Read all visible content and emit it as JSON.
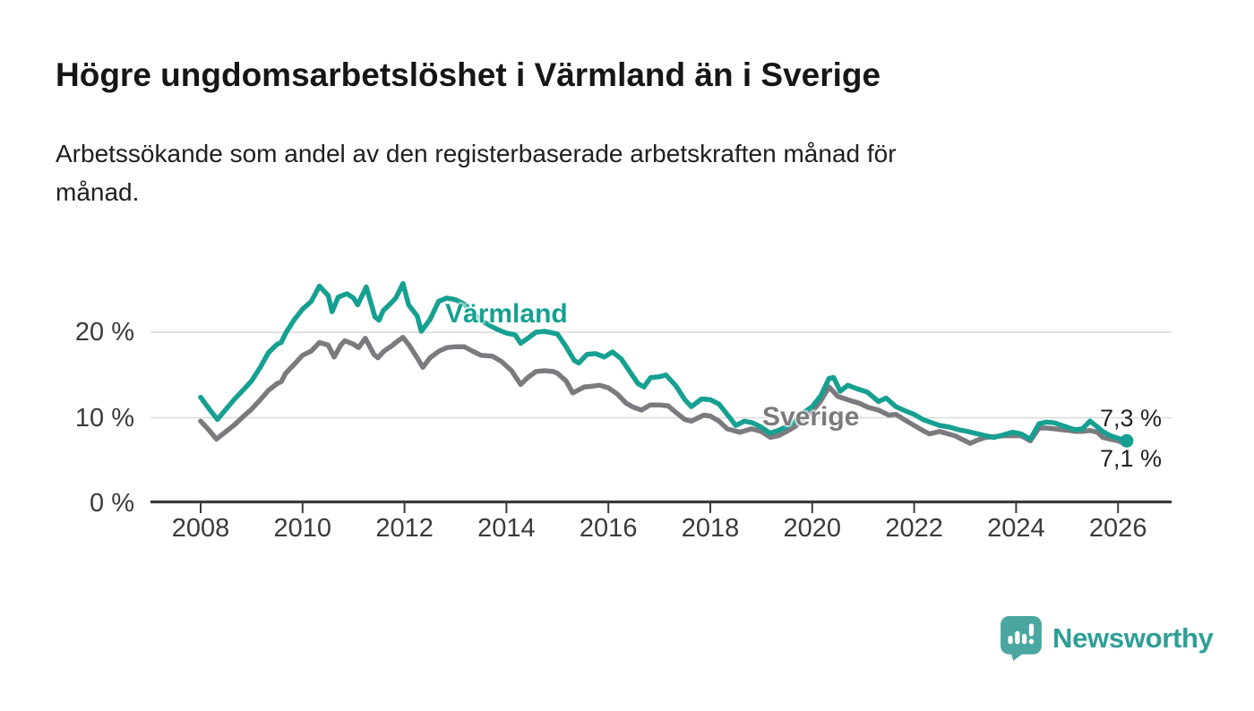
{
  "header": {
    "title": "Högre ungdomsarbetslöshet i Värmland än i Sverige",
    "subtitle_lines": [
      "Arbetssökande som andel av den registerbaserade arbetskraften månad för",
      "månad."
    ]
  },
  "footer": {
    "brand": "Newsworthy",
    "brand_color": "#2f9e96",
    "logo_bubble_color": "#4aa6a0",
    "logo_bars_color": "#ffffff"
  },
  "chart_data": {
    "type": "line",
    "title": "Högre ungdomsarbetslöshet i Värmland än i Sverige",
    "subtitle": "Arbetssökande som andel av den registerbaserade arbetskraften månad för månad.",
    "unit": "%",
    "grid": "horizontal",
    "legend_position": "inline-labels",
    "x_range": [
      2008,
      2027.05
    ],
    "y_range": [
      0,
      27
    ],
    "x_ticks": [
      2008,
      2010,
      2012,
      2014,
      2016,
      2018,
      2020,
      2022,
      2024,
      2026
    ],
    "y_ticks": [
      {
        "value": 0,
        "label": "0 %"
      },
      {
        "value": 10,
        "label": "10 %"
      },
      {
        "value": 20,
        "label": "20 %"
      }
    ],
    "axis_color": "#3b3b3b",
    "gridline_color": "#d9d9d9",
    "series": [
      {
        "name": "Värmland",
        "color": "#16a091",
        "end_label": "7,3 %",
        "end_value": 7.3,
        "points": [
          [
            2008.0,
            12.4
          ],
          [
            2008.17,
            11.0
          ],
          [
            2008.33,
            9.8
          ],
          [
            2008.5,
            11.0
          ],
          [
            2008.67,
            12.2
          ],
          [
            2008.83,
            13.2
          ],
          [
            2009.0,
            14.3
          ],
          [
            2009.17,
            15.9
          ],
          [
            2009.33,
            17.6
          ],
          [
            2009.5,
            18.6
          ],
          [
            2009.58,
            18.8
          ],
          [
            2009.67,
            19.9
          ],
          [
            2009.83,
            21.4
          ],
          [
            2010.0,
            22.7
          ],
          [
            2010.17,
            23.6
          ],
          [
            2010.33,
            25.4
          ],
          [
            2010.5,
            24.3
          ],
          [
            2010.58,
            22.4
          ],
          [
            2010.7,
            24.1
          ],
          [
            2010.87,
            24.5
          ],
          [
            2011.0,
            24.0
          ],
          [
            2011.08,
            23.2
          ],
          [
            2011.25,
            25.3
          ],
          [
            2011.42,
            21.8
          ],
          [
            2011.5,
            21.4
          ],
          [
            2011.58,
            22.5
          ],
          [
            2011.75,
            23.5
          ],
          [
            2011.83,
            24.0
          ],
          [
            2011.97,
            25.7
          ],
          [
            2012.08,
            23.2
          ],
          [
            2012.25,
            21.9
          ],
          [
            2012.33,
            20.1
          ],
          [
            2012.5,
            21.5
          ],
          [
            2012.67,
            23.6
          ],
          [
            2012.83,
            24.0
          ],
          [
            2013.0,
            23.8
          ],
          [
            2013.17,
            23.3
          ],
          [
            2013.33,
            22.3
          ],
          [
            2013.5,
            21.4
          ],
          [
            2013.67,
            20.8
          ],
          [
            2013.83,
            20.3
          ],
          [
            2014.0,
            19.9
          ],
          [
            2014.17,
            19.7
          ],
          [
            2014.28,
            18.7
          ],
          [
            2014.42,
            19.3
          ],
          [
            2014.58,
            20.0
          ],
          [
            2014.75,
            20.1
          ],
          [
            2014.92,
            19.9
          ],
          [
            2015.0,
            19.8
          ],
          [
            2015.17,
            18.3
          ],
          [
            2015.33,
            16.7
          ],
          [
            2015.42,
            16.4
          ],
          [
            2015.58,
            17.4
          ],
          [
            2015.75,
            17.5
          ],
          [
            2015.92,
            17.1
          ],
          [
            2016.08,
            17.7
          ],
          [
            2016.25,
            16.9
          ],
          [
            2016.42,
            15.4
          ],
          [
            2016.58,
            14.0
          ],
          [
            2016.7,
            13.6
          ],
          [
            2016.83,
            14.7
          ],
          [
            2017.0,
            14.8
          ],
          [
            2017.13,
            15.0
          ],
          [
            2017.33,
            13.7
          ],
          [
            2017.5,
            12.1
          ],
          [
            2017.63,
            11.3
          ],
          [
            2017.83,
            12.2
          ],
          [
            2018.0,
            12.1
          ],
          [
            2018.17,
            11.6
          ],
          [
            2018.33,
            10.4
          ],
          [
            2018.5,
            9.1
          ],
          [
            2018.67,
            9.6
          ],
          [
            2018.83,
            9.4
          ],
          [
            2019.0,
            8.9
          ],
          [
            2019.17,
            8.2
          ],
          [
            2019.33,
            8.5
          ],
          [
            2019.5,
            9.0
          ],
          [
            2019.67,
            9.6
          ],
          [
            2019.83,
            10.6
          ],
          [
            2020.0,
            11.3
          ],
          [
            2020.17,
            12.6
          ],
          [
            2020.33,
            14.6
          ],
          [
            2020.42,
            14.7
          ],
          [
            2020.55,
            13.1
          ],
          [
            2020.7,
            13.8
          ],
          [
            2020.87,
            13.4
          ],
          [
            2021.08,
            13.0
          ],
          [
            2021.3,
            11.9
          ],
          [
            2021.45,
            12.3
          ],
          [
            2021.64,
            11.3
          ],
          [
            2021.83,
            10.8
          ],
          [
            2022.0,
            10.4
          ],
          [
            2022.17,
            9.8
          ],
          [
            2022.35,
            9.4
          ],
          [
            2022.5,
            9.1
          ],
          [
            2022.7,
            8.9
          ],
          [
            2022.87,
            8.6
          ],
          [
            2023.05,
            8.4
          ],
          [
            2023.25,
            8.1
          ],
          [
            2023.4,
            7.9
          ],
          [
            2023.57,
            7.7
          ],
          [
            2023.75,
            8.0
          ],
          [
            2023.93,
            8.3
          ],
          [
            2024.1,
            8.1
          ],
          [
            2024.28,
            7.5
          ],
          [
            2024.45,
            9.3
          ],
          [
            2024.6,
            9.5
          ],
          [
            2024.75,
            9.4
          ],
          [
            2024.9,
            9.1
          ],
          [
            2025.05,
            8.8
          ],
          [
            2025.16,
            8.6
          ],
          [
            2025.3,
            8.7
          ],
          [
            2025.45,
            9.6
          ],
          [
            2025.6,
            8.9
          ],
          [
            2025.7,
            8.4
          ],
          [
            2025.85,
            7.9
          ],
          [
            2026.0,
            7.6
          ],
          [
            2026.17,
            7.3
          ]
        ]
      },
      {
        "name": "Sverige",
        "color": "#7b7b7f",
        "end_label": "7,1 %",
        "end_value": 7.1,
        "points": [
          [
            2008.0,
            9.6
          ],
          [
            2008.17,
            8.5
          ],
          [
            2008.31,
            7.5
          ],
          [
            2008.5,
            8.4
          ],
          [
            2008.67,
            9.2
          ],
          [
            2008.83,
            10.1
          ],
          [
            2009.0,
            11.0
          ],
          [
            2009.17,
            12.1
          ],
          [
            2009.33,
            13.2
          ],
          [
            2009.5,
            14.0
          ],
          [
            2009.58,
            14.2
          ],
          [
            2009.67,
            15.2
          ],
          [
            2009.83,
            16.2
          ],
          [
            2010.0,
            17.3
          ],
          [
            2010.17,
            17.8
          ],
          [
            2010.33,
            18.8
          ],
          [
            2010.5,
            18.5
          ],
          [
            2010.62,
            17.1
          ],
          [
            2010.75,
            18.5
          ],
          [
            2010.83,
            19.0
          ],
          [
            2011.0,
            18.6
          ],
          [
            2011.1,
            18.2
          ],
          [
            2011.23,
            19.3
          ],
          [
            2011.4,
            17.4
          ],
          [
            2011.48,
            17.0
          ],
          [
            2011.6,
            17.8
          ],
          [
            2011.75,
            18.4
          ],
          [
            2011.83,
            18.8
          ],
          [
            2011.97,
            19.4
          ],
          [
            2012.1,
            18.4
          ],
          [
            2012.25,
            17.0
          ],
          [
            2012.36,
            15.9
          ],
          [
            2012.5,
            17.0
          ],
          [
            2012.68,
            17.8
          ],
          [
            2012.83,
            18.2
          ],
          [
            2013.0,
            18.3
          ],
          [
            2013.17,
            18.3
          ],
          [
            2013.33,
            17.8
          ],
          [
            2013.5,
            17.3
          ],
          [
            2013.72,
            17.2
          ],
          [
            2013.9,
            16.6
          ],
          [
            2014.1,
            15.5
          ],
          [
            2014.28,
            13.9
          ],
          [
            2014.42,
            14.7
          ],
          [
            2014.58,
            15.4
          ],
          [
            2014.75,
            15.5
          ],
          [
            2014.92,
            15.4
          ],
          [
            2015.0,
            15.2
          ],
          [
            2015.17,
            14.3
          ],
          [
            2015.3,
            12.9
          ],
          [
            2015.53,
            13.6
          ],
          [
            2015.7,
            13.7
          ],
          [
            2015.83,
            13.8
          ],
          [
            2016.0,
            13.5
          ],
          [
            2016.17,
            12.8
          ],
          [
            2016.35,
            11.7
          ],
          [
            2016.5,
            11.2
          ],
          [
            2016.65,
            10.9
          ],
          [
            2016.82,
            11.5
          ],
          [
            2017.0,
            11.5
          ],
          [
            2017.17,
            11.4
          ],
          [
            2017.33,
            10.6
          ],
          [
            2017.5,
            9.8
          ],
          [
            2017.63,
            9.6
          ],
          [
            2017.87,
            10.3
          ],
          [
            2018.0,
            10.2
          ],
          [
            2018.17,
            9.6
          ],
          [
            2018.33,
            8.7
          ],
          [
            2018.58,
            8.3
          ],
          [
            2018.81,
            8.7
          ],
          [
            2019.0,
            8.4
          ],
          [
            2019.18,
            7.7
          ],
          [
            2019.33,
            7.9
          ],
          [
            2019.5,
            8.4
          ],
          [
            2019.67,
            9.0
          ],
          [
            2019.83,
            9.9
          ],
          [
            2020.0,
            10.7
          ],
          [
            2020.17,
            12.0
          ],
          [
            2020.33,
            13.6
          ],
          [
            2020.5,
            12.5
          ],
          [
            2020.65,
            12.2
          ],
          [
            2020.75,
            12.0
          ],
          [
            2020.92,
            11.7
          ],
          [
            2021.1,
            11.2
          ],
          [
            2021.3,
            10.9
          ],
          [
            2021.5,
            10.3
          ],
          [
            2021.64,
            10.4
          ],
          [
            2021.83,
            9.7
          ],
          [
            2022.0,
            9.1
          ],
          [
            2022.17,
            8.5
          ],
          [
            2022.3,
            8.1
          ],
          [
            2022.5,
            8.4
          ],
          [
            2022.67,
            8.1
          ],
          [
            2022.8,
            7.9
          ],
          [
            2023.1,
            7.0
          ],
          [
            2023.25,
            7.4
          ],
          [
            2023.4,
            7.7
          ],
          [
            2023.6,
            7.8
          ],
          [
            2023.75,
            7.9
          ],
          [
            2024.0,
            7.9
          ],
          [
            2024.1,
            7.9
          ],
          [
            2024.28,
            7.3
          ],
          [
            2024.45,
            8.8
          ],
          [
            2024.6,
            8.8
          ],
          [
            2024.75,
            8.7
          ],
          [
            2024.9,
            8.6
          ],
          [
            2025.05,
            8.5
          ],
          [
            2025.16,
            8.4
          ],
          [
            2025.3,
            8.4
          ],
          [
            2025.45,
            8.5
          ],
          [
            2025.6,
            8.3
          ],
          [
            2025.7,
            7.7
          ],
          [
            2025.85,
            7.5
          ],
          [
            2026.0,
            7.3
          ],
          [
            2026.08,
            7.1
          ]
        ]
      }
    ]
  }
}
